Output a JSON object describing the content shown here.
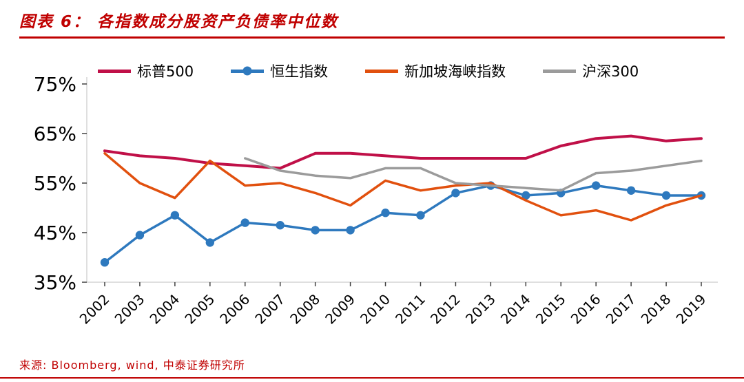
{
  "header": {
    "title": "图表 6： 各指数成分股资产负债率中位数"
  },
  "footer": {
    "source": "来源: Bloomberg, wind, 中泰证券研究所"
  },
  "accent_color": "#C00000",
  "chart_data": {
    "type": "line",
    "title": "各指数成分股资产负债率中位数",
    "x": [
      "2002",
      "2003",
      "2004",
      "2005",
      "2006",
      "2007",
      "2008",
      "2009",
      "2010",
      "2011",
      "2012",
      "2013",
      "2014",
      "2015",
      "2016",
      "2017",
      "2018",
      "2019"
    ],
    "xlabel": "",
    "ylabel": "",
    "ylim": [
      35,
      75
    ],
    "yticks": [
      35,
      45,
      55,
      65,
      75
    ],
    "ytick_suffix": "%",
    "grid": false,
    "legend_position": "top",
    "series": [
      {
        "key": "sp500",
        "name": "标普500",
        "color": "#C01048",
        "width": 4,
        "marker": false,
        "values": [
          61.5,
          60.5,
          60,
          59,
          58.5,
          58,
          61,
          61,
          60.5,
          60,
          60,
          60,
          60,
          62.5,
          64,
          64.5,
          63.5,
          64
        ]
      },
      {
        "key": "hangseng",
        "name": "恒生指数",
        "color": "#2E79BE",
        "width": 3.5,
        "marker": true,
        "values": [
          39,
          44.5,
          48.5,
          43,
          47,
          46.5,
          45.5,
          45.5,
          49,
          48.5,
          53,
          54.5,
          52.5,
          53,
          54.5,
          53.5,
          52.5,
          52.5
        ]
      },
      {
        "key": "straits",
        "name": "新加坡海峡指数",
        "color": "#E1500E",
        "width": 3.5,
        "marker": false,
        "values": [
          61,
          55,
          52,
          59.5,
          54.5,
          55,
          53,
          50.5,
          55.5,
          53.5,
          54.5,
          55,
          51.5,
          48.5,
          49.5,
          47.5,
          50.5,
          52.5
        ]
      },
      {
        "key": "csi300",
        "name": "沪深300",
        "color": "#9B9B9B",
        "width": 3.5,
        "marker": false,
        "values": [
          null,
          null,
          null,
          null,
          60,
          57.5,
          56.5,
          56,
          58,
          58,
          55,
          54.5,
          54,
          53.5,
          57,
          57.5,
          58.5,
          59.5
        ]
      }
    ]
  }
}
